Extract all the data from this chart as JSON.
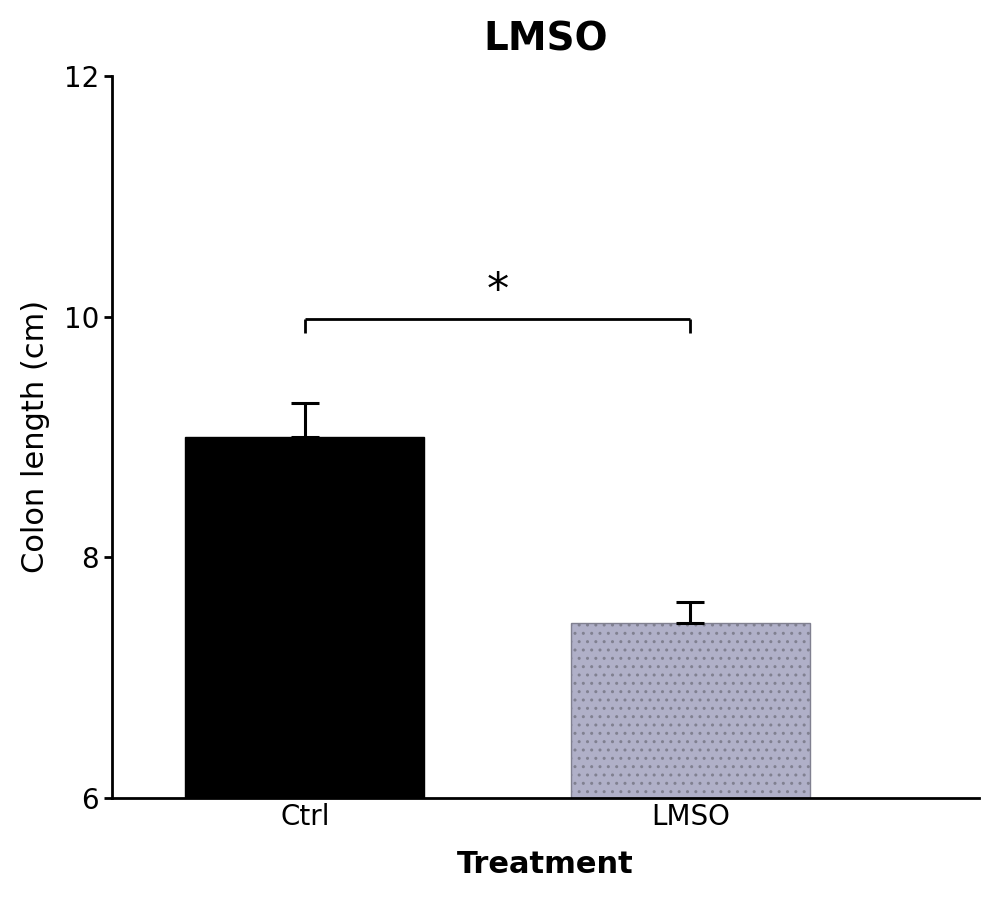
{
  "title": "LMSO",
  "xlabel": "Treatment",
  "ylabel": "Colon length (cm)",
  "categories": [
    "Ctrl",
    "LMSO"
  ],
  "values": [
    9.0,
    7.45
  ],
  "errors": [
    0.28,
    0.18
  ],
  "bar_colors": [
    "#000000",
    "#b0b0c8"
  ],
  "ylim": [
    6,
    12
  ],
  "yticks": [
    6,
    8,
    10,
    12
  ],
  "bar_width": 0.62,
  "x_positions": [
    1,
    2
  ],
  "significance_y": 9.98,
  "bracket_drop": 0.12,
  "significance_label": "*",
  "title_fontsize": 28,
  "axis_label_fontsize": 22,
  "tick_fontsize": 20,
  "sig_fontsize": 32,
  "background_color": "#ffffff",
  "xlim": [
    0.5,
    2.75
  ]
}
